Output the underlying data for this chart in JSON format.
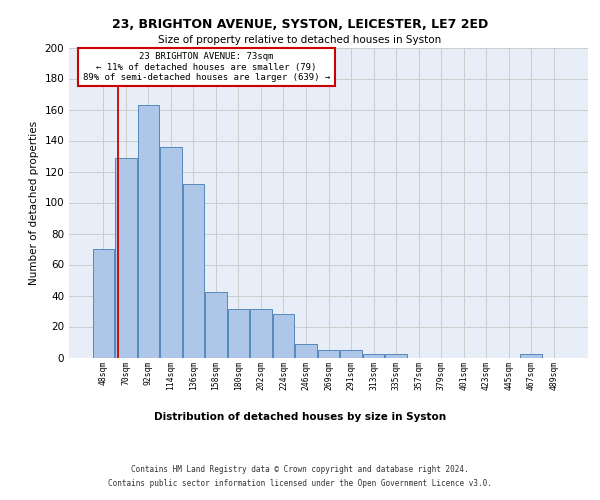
{
  "title1": "23, BRIGHTON AVENUE, SYSTON, LEICESTER, LE7 2ED",
  "title2": "Size of property relative to detached houses in Syston",
  "xlabel": "Distribution of detached houses by size in Syston",
  "ylabel": "Number of detached properties",
  "bar_labels": [
    "48sqm",
    "70sqm",
    "92sqm",
    "114sqm",
    "136sqm",
    "158sqm",
    "180sqm",
    "202sqm",
    "224sqm",
    "246sqm",
    "269sqm",
    "291sqm",
    "313sqm",
    "335sqm",
    "357sqm",
    "379sqm",
    "401sqm",
    "423sqm",
    "445sqm",
    "467sqm",
    "489sqm"
  ],
  "bar_values": [
    70,
    129,
    163,
    136,
    112,
    42,
    31,
    31,
    28,
    9,
    5,
    5,
    2,
    2,
    0,
    0,
    0,
    0,
    0,
    2,
    0
  ],
  "bar_color": "#aec6e8",
  "bar_edge_color": "#5588bb",
  "property_label": "23 BRIGHTON AVENUE: 73sqm",
  "annotation_line1": "← 11% of detached houses are smaller (79)",
  "annotation_line2": "89% of semi-detached houses are larger (639) →",
  "vline_color": "#cc0000",
  "annotation_box_color": "#cc0000",
  "grid_color": "#cccccc",
  "ylim": [
    0,
    200
  ],
  "yticks": [
    0,
    20,
    40,
    60,
    80,
    100,
    120,
    140,
    160,
    180,
    200
  ],
  "footer1": "Contains HM Land Registry data © Crown copyright and database right 2024.",
  "footer2": "Contains public sector information licensed under the Open Government Licence v3.0.",
  "bg_color": "#e8eef8"
}
